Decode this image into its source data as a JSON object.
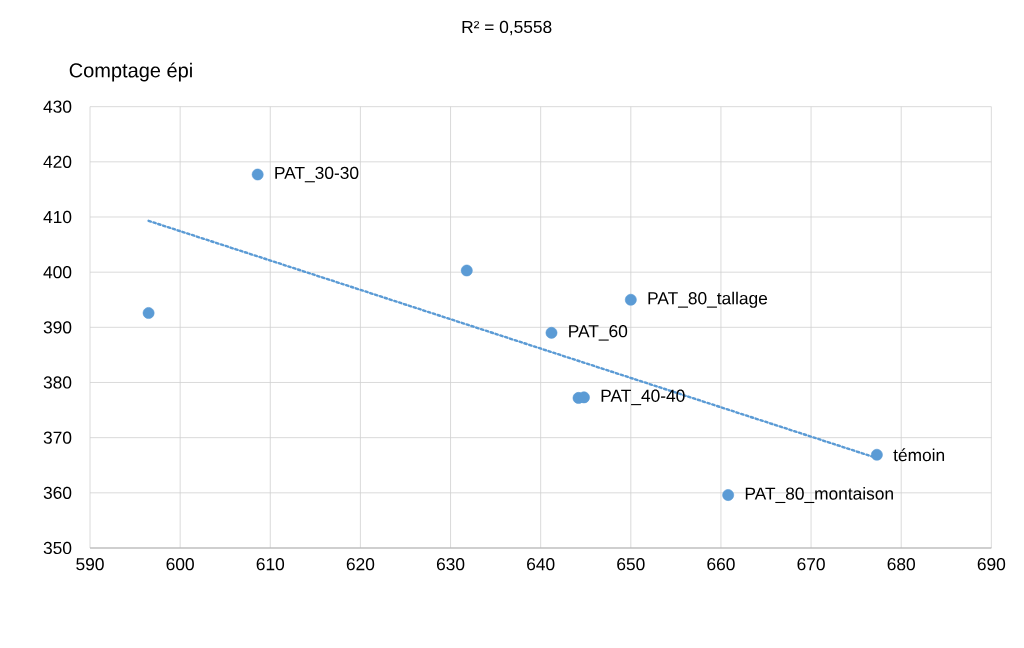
{
  "chart_data": {
    "type": "scatter",
    "ylabel": "Comptage épi",
    "xlim": [
      590,
      690
    ],
    "ylim": [
      350,
      430
    ],
    "xticks": [
      590,
      600,
      610,
      620,
      630,
      640,
      650,
      660,
      670,
      680,
      690
    ],
    "yticks": [
      350,
      360,
      370,
      380,
      390,
      400,
      410,
      420,
      430
    ],
    "grid": true,
    "series": [
      {
        "marker": "circle",
        "color": "#5b9bd5",
        "x": [
          596.5,
          608.6,
          631.8,
          650.0,
          641.2,
          644.2,
          644.8,
          677.3,
          660.8
        ],
        "values": [
          392.6,
          417.7,
          400.3,
          395.0,
          389.0,
          377.2,
          377.3,
          366.9,
          359.6
        ]
      },
      {
        "type": "line",
        "color": "#5b9bd5",
        "line_style": "dotted",
        "marker": "none",
        "x": [
          596.5,
          677.3
        ],
        "values": [
          409.3,
          366.3
        ]
      }
    ],
    "annotations": [
      "R² = 0,5558",
      {
        "text": "PAT_30-30",
        "x": 608.6,
        "y": 417.7
      },
      {
        "text": "PAT_80_tallage",
        "x": 650.0,
        "y": 395.0
      },
      {
        "text": "PAT_60",
        "x": 641.2,
        "y": 389.0
      },
      {
        "text": "PAT_40-40",
        "x": 644.8,
        "y": 377.3
      },
      {
        "text": "témoin",
        "x": 677.3,
        "y": 366.9
      },
      {
        "text": "PAT_80_montaison",
        "x": 660.8,
        "y": 359.6
      }
    ]
  }
}
